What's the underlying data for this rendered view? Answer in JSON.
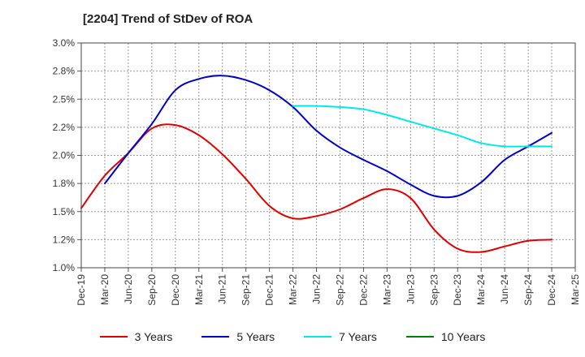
{
  "chart_data": {
    "type": "line",
    "title": "[2204]  Trend of StDev of ROA",
    "xlabel": "",
    "ylabel": "",
    "x_labels": [
      "Dec-19",
      "Mar-20",
      "Jun-20",
      "Sep-20",
      "Dec-20",
      "Mar-21",
      "Jun-21",
      "Sep-21",
      "Dec-21",
      "Mar-22",
      "Jun-22",
      "Sep-22",
      "Dec-22",
      "Mar-23",
      "Jun-23",
      "Sep-23",
      "Dec-23",
      "Mar-24",
      "Jun-24",
      "Sep-24",
      "Dec-24",
      "Mar-25"
    ],
    "y_ticks": [
      "1.0%",
      "1.2%",
      "1.5%",
      "1.8%",
      "2.0%",
      "2.2%",
      "2.5%",
      "2.8%",
      "3.0%"
    ],
    "ylim": [
      1.0,
      3.0
    ],
    "grid": true,
    "legend_position": "bottom",
    "series": [
      {
        "name": "3 Years",
        "color": "#e00000",
        "values": [
          1.53,
          1.82,
          2.02,
          2.24,
          2.27,
          2.18,
          2.01,
          1.79,
          1.55,
          1.44,
          1.46,
          1.52,
          1.62,
          1.7,
          1.62,
          1.34,
          1.17,
          1.14,
          1.19,
          1.24,
          1.25,
          null
        ]
      },
      {
        "name": "5 Years",
        "color": "#0000c8",
        "values": [
          null,
          1.75,
          2.02,
          2.28,
          2.58,
          2.68,
          2.71,
          2.67,
          2.58,
          2.43,
          2.22,
          2.07,
          1.96,
          1.86,
          1.74,
          1.64,
          1.64,
          1.76,
          1.96,
          2.08,
          2.2,
          null
        ]
      },
      {
        "name": "7 Years",
        "color": "#00e8e8",
        "values": [
          null,
          null,
          null,
          null,
          null,
          null,
          null,
          null,
          null,
          2.44,
          2.44,
          2.43,
          2.41,
          2.36,
          2.3,
          2.24,
          2.18,
          2.11,
          2.08,
          2.08,
          2.08,
          null
        ]
      },
      {
        "name": "10 Years",
        "color": "#008000",
        "values": [
          null,
          null,
          null,
          null,
          null,
          null,
          null,
          null,
          null,
          null,
          null,
          null,
          null,
          null,
          null,
          null,
          null,
          null,
          null,
          null,
          null,
          null
        ]
      }
    ]
  }
}
